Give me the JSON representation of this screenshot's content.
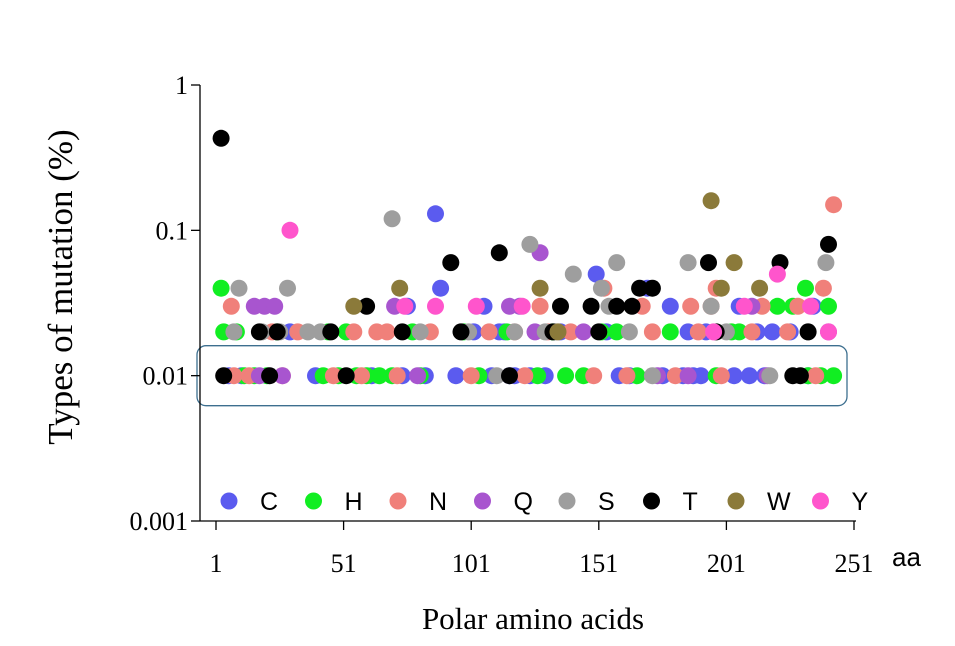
{
  "chart_data": {
    "type": "scatter",
    "title": "",
    "xlabel": "Polar amino acids",
    "ylabel": "Types of mutation (%)",
    "x_unit": "aa",
    "xlim": [
      1,
      251
    ],
    "ylim": [
      0.001,
      1
    ],
    "y_scale": "log",
    "x_ticks": [
      1,
      51,
      101,
      151,
      201,
      251
    ],
    "y_ticks": [
      0.001,
      0.01,
      0.1,
      1
    ],
    "y_tick_labels": [
      "0.001",
      "0.01",
      "0.1",
      "1"
    ],
    "legend_position": "bottom-inside",
    "highlight_band": "0.01",
    "series": [
      {
        "name": "C",
        "color": "#5b5bef",
        "x": [
          6,
          11,
          30,
          40,
          62,
          74,
          76,
          83,
          87,
          89,
          95,
          102,
          106,
          109,
          112,
          114,
          116,
          118,
          124,
          130,
          136,
          150,
          154,
          159,
          163,
          170,
          176,
          179,
          184,
          186,
          188,
          191,
          193,
          204,
          206,
          210,
          213,
          216,
          219,
          226,
          233,
          235
        ],
        "y": [
          0.01,
          0.01,
          0.02,
          0.01,
          0.01,
          0.01,
          0.03,
          0.01,
          0.13,
          0.04,
          0.01,
          0.02,
          0.03,
          0.01,
          0.02,
          0.02,
          0.01,
          0.01,
          0.01,
          0.01,
          0.02,
          0.05,
          0.02,
          0.01,
          0.01,
          0.04,
          0.01,
          0.03,
          0.01,
          0.02,
          0.01,
          0.01,
          0.02,
          0.01,
          0.03,
          0.01,
          0.02,
          0.01,
          0.02,
          0.02,
          0.01,
          0.03
        ]
      },
      {
        "name": "H",
        "color": "#11ee22",
        "x": [
          3,
          4,
          9,
          12,
          16,
          21,
          25,
          43,
          45,
          49,
          52,
          56,
          60,
          65,
          70,
          78,
          81,
          98,
          104,
          115,
          127,
          133,
          138,
          145,
          152,
          158,
          166,
          179,
          197,
          203,
          206,
          221,
          227,
          232,
          233,
          238,
          241,
          243
        ],
        "y": [
          0.04,
          0.02,
          0.02,
          0.01,
          0.01,
          0.01,
          0.02,
          0.01,
          0.02,
          0.01,
          0.02,
          0.01,
          0.01,
          0.01,
          0.01,
          0.02,
          0.01,
          0.02,
          0.01,
          0.02,
          0.01,
          0.02,
          0.01,
          0.01,
          0.02,
          0.02,
          0.01,
          0.02,
          0.01,
          0.02,
          0.02,
          0.03,
          0.03,
          0.04,
          0.01,
          0.01,
          0.03,
          0.01
        ]
      },
      {
        "name": "N",
        "color": "#f0807a",
        "x": [
          7,
          8,
          14,
          23,
          27,
          33,
          47,
          55,
          58,
          64,
          68,
          72,
          85,
          101,
          108,
          118,
          122,
          128,
          131,
          140,
          149,
          153,
          162,
          168,
          172,
          181,
          187,
          190,
          195,
          197,
          199,
          211,
          215,
          225,
          229,
          236,
          239,
          243
        ],
        "y": [
          0.03,
          0.01,
          0.01,
          0.02,
          0.01,
          0.02,
          0.01,
          0.02,
          0.01,
          0.02,
          0.02,
          0.01,
          0.02,
          0.01,
          0.02,
          0.02,
          0.01,
          0.03,
          0.02,
          0.02,
          0.01,
          0.04,
          0.01,
          0.03,
          0.02,
          0.01,
          0.03,
          0.02,
          0.03,
          0.04,
          0.01,
          0.02,
          0.03,
          0.02,
          0.03,
          0.01,
          0.04,
          0.15
        ]
      },
      {
        "name": "Q",
        "color": "#a855cf",
        "x": [
          16,
          18,
          20,
          24,
          27,
          71,
          80,
          116,
          120,
          126,
          128,
          145,
          174,
          186,
          211,
          217,
          241
        ],
        "y": [
          0.03,
          0.01,
          0.03,
          0.03,
          0.01,
          0.03,
          0.01,
          0.03,
          0.03,
          0.02,
          0.07,
          0.02,
          0.01,
          0.01,
          0.03,
          0.01,
          0.02
        ]
      },
      {
        "name": "S",
        "color": "#9e9e9e",
        "x": [
          8,
          10,
          19,
          26,
          29,
          37,
          42,
          70,
          81,
          100,
          111,
          118,
          124,
          130,
          134,
          141,
          152,
          155,
          158,
          163,
          172,
          186,
          195,
          201,
          218,
          233,
          240
        ],
        "y": [
          0.02,
          0.04,
          0.02,
          0.02,
          0.04,
          0.02,
          0.02,
          0.12,
          0.02,
          0.02,
          0.01,
          0.02,
          0.08,
          0.02,
          0.02,
          0.05,
          0.04,
          0.03,
          0.06,
          0.02,
          0.01,
          0.06,
          0.03,
          0.02,
          0.01,
          0.02,
          0.06
        ]
      },
      {
        "name": "T",
        "color": "#000000",
        "x": [
          3,
          4,
          18,
          22,
          25,
          46,
          52,
          60,
          74,
          93,
          97,
          112,
          116,
          133,
          136,
          148,
          151,
          158,
          164,
          167,
          172,
          194,
          197,
          222,
          227,
          230,
          233,
          241
        ],
        "y": [
          0.43,
          0.01,
          0.02,
          0.01,
          0.02,
          0.02,
          0.01,
          0.03,
          0.02,
          0.06,
          0.02,
          0.07,
          0.01,
          0.02,
          0.03,
          0.03,
          0.02,
          0.03,
          0.03,
          0.04,
          0.04,
          0.06,
          0.02,
          0.06,
          0.01,
          0.01,
          0.02,
          0.08
        ]
      },
      {
        "name": "W",
        "color": "#8b7a3a",
        "x": [
          55,
          73,
          128,
          135,
          195,
          199,
          204,
          214
        ],
        "y": [
          0.03,
          0.04,
          0.04,
          0.02,
          0.16,
          0.04,
          0.06,
          0.04
        ]
      },
      {
        "name": "Y",
        "color": "#ff55cc",
        "x": [
          30,
          75,
          87,
          103,
          121,
          196,
          208,
          221,
          234,
          241
        ],
        "y": [
          0.1,
          0.03,
          0.03,
          0.03,
          0.03,
          0.02,
          0.03,
          0.05,
          0.03,
          0.02
        ]
      }
    ]
  }
}
